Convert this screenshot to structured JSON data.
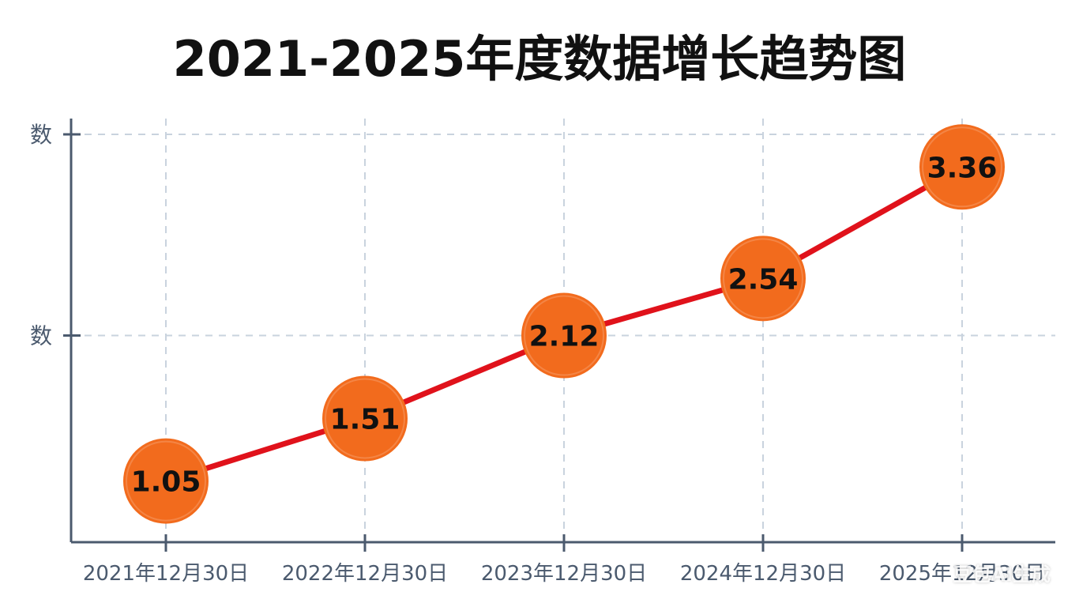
{
  "title": "2021-2025年度数据增长趋势图",
  "watermark": "豆包AI生成",
  "chart_data": {
    "type": "line",
    "title": "2021-2025年度数据增长趋势图",
    "categories": [
      "2021年12月30日",
      "2022年12月30日",
      "2023年12月30日",
      "2024年12月30日",
      "2025年12月30日"
    ],
    "values": [
      1.05,
      1.51,
      2.12,
      2.54,
      3.36
    ],
    "data_labels": [
      "1.05",
      "1.51",
      "2.12",
      "2.54",
      "3.36"
    ],
    "y_tick_labels": [
      "数",
      "数"
    ],
    "y_ticks": [
      2.12,
      3.6
    ],
    "ylim": [
      0.6,
      3.6
    ],
    "grid": true,
    "legend": "none",
    "colors": {
      "line": "#e0121b",
      "marker": "#f26b1d",
      "axis": "#4b5a6e",
      "grid": "#c9d3de",
      "tick_label": "#4b5a6e",
      "data_label": "#111111"
    }
  }
}
